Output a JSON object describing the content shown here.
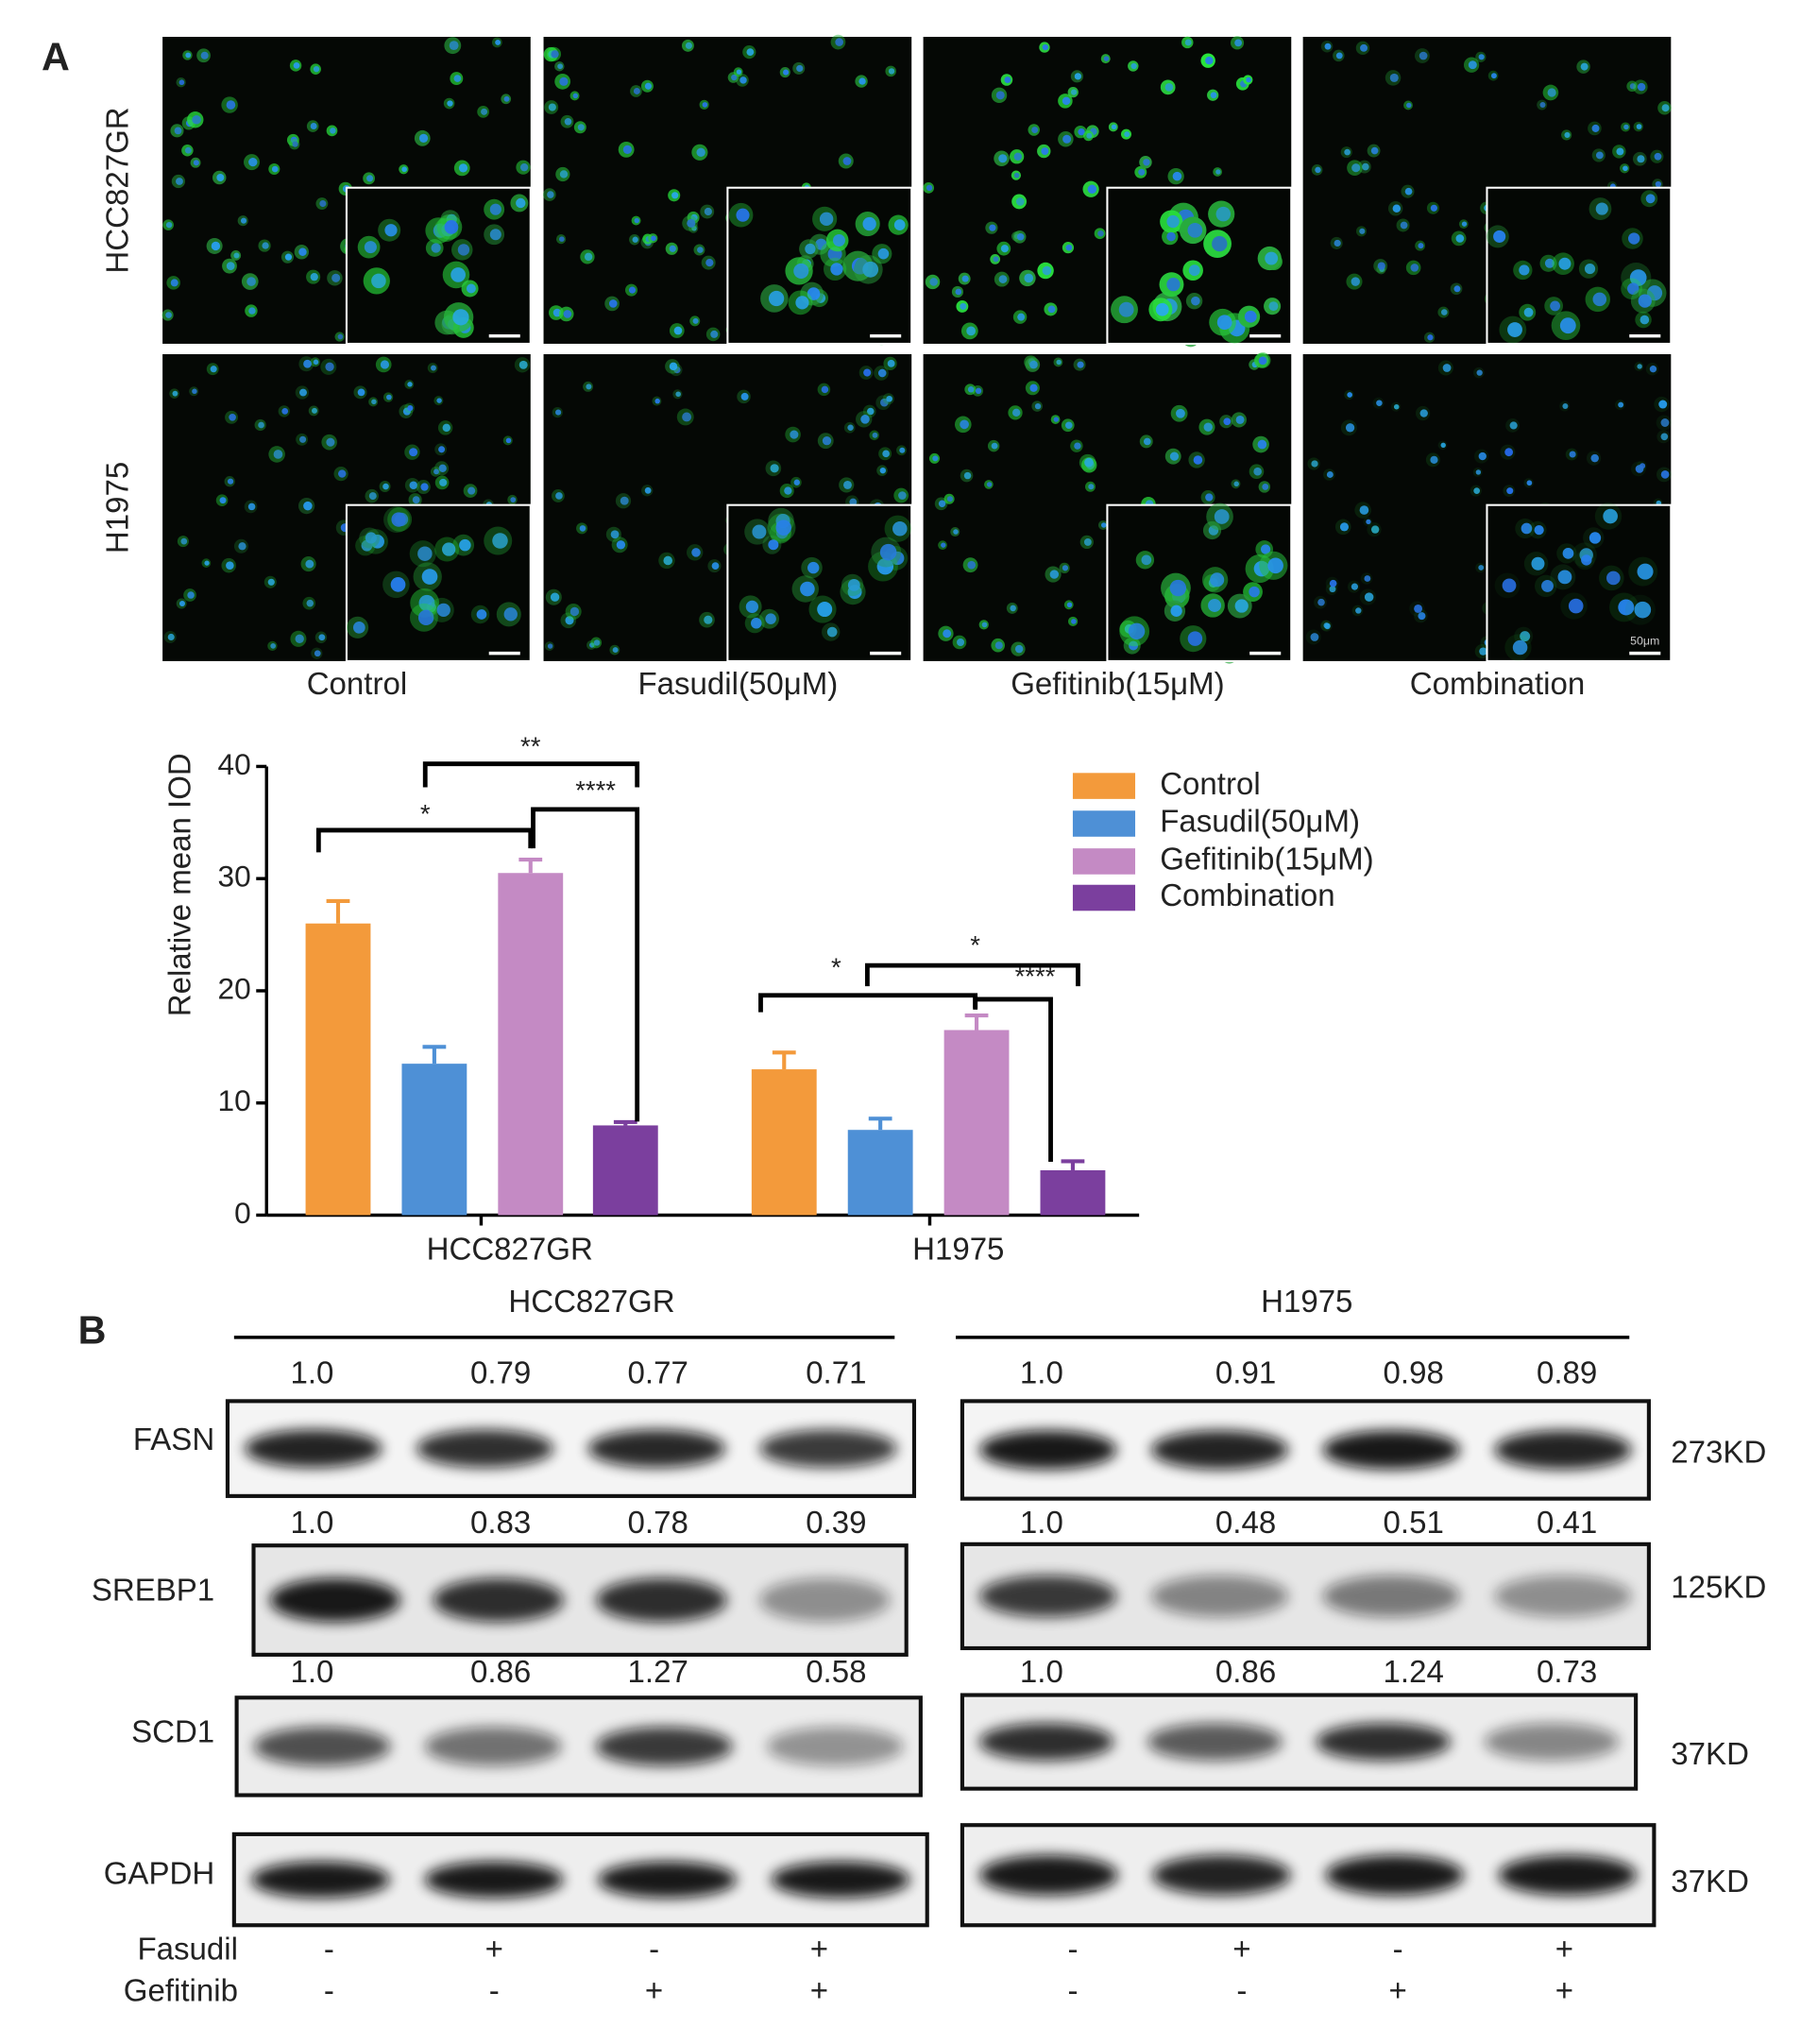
{
  "panel_a": {
    "label": "A",
    "rows": [
      "HCC827GR",
      "H1975"
    ],
    "columns": [
      "Control",
      "Fasudil(50μM)",
      "Gefitinib(15μM)",
      "Combination"
    ],
    "scale_bar_label": "50μm"
  },
  "chart_data": {
    "type": "bar",
    "y_label": "Relative mean IOD",
    "categories": [
      "HCC827GR",
      "H1975"
    ],
    "series": [
      {
        "name": "Control",
        "color": "#f39a3b",
        "values": [
          26,
          13
        ],
        "errors": [
          2,
          1.5
        ]
      },
      {
        "name": "Fasudil(50μM)",
        "color": "#4e90d6",
        "values": [
          13.5,
          7.6
        ],
        "errors": [
          1.5,
          1
        ]
      },
      {
        "name": "Gefitinib(15μM)",
        "color": "#c48ac4",
        "values": [
          30.5,
          16.5
        ],
        "errors": [
          1.2,
          1.3
        ]
      },
      {
        "name": "Combination",
        "color": "#7b3f9e",
        "values": [
          8,
          4
        ],
        "errors": [
          0.3,
          0.8
        ]
      }
    ],
    "ylim": [
      0,
      40
    ],
    "yticks": [
      0,
      10,
      20,
      30,
      40
    ],
    "grid": false,
    "legend": "right",
    "annotations": [
      "*",
      "**",
      "****",
      "*",
      "*",
      "****"
    ]
  },
  "panel_b": {
    "label": "B",
    "cell_lines": [
      "HCC827GR",
      "H1975"
    ],
    "rows": [
      {
        "protein": "FASN",
        "size": "273KD",
        "ratios": [
          [
            "1.0",
            "0.79",
            "0.77",
            "0.71"
          ],
          [
            "1.0",
            "0.91",
            "0.98",
            "0.89"
          ]
        ]
      },
      {
        "protein": "SREBP1",
        "size": "125KD",
        "ratios": [
          [
            "1.0",
            "0.83",
            "0.78",
            "0.39"
          ],
          [
            "1.0",
            "0.48",
            "0.51",
            "0.41"
          ]
        ]
      },
      {
        "protein": "SCD1",
        "size": "37KD",
        "ratios": [
          [
            "1.0",
            "0.86",
            "1.27",
            "0.58"
          ],
          [
            "1.0",
            "0.86",
            "1.24",
            "0.73"
          ]
        ]
      },
      {
        "protein": "GAPDH",
        "size": "37KD"
      }
    ],
    "treatments": [
      {
        "name": "Fasudil",
        "signs": [
          [
            "-",
            "+",
            "-",
            "+"
          ],
          [
            "-",
            "+",
            "-",
            "+"
          ]
        ]
      },
      {
        "name": "Gefitinib",
        "signs": [
          [
            "-",
            "-",
            "+",
            "+"
          ],
          [
            "-",
            "-",
            "+",
            "+"
          ]
        ]
      }
    ]
  }
}
